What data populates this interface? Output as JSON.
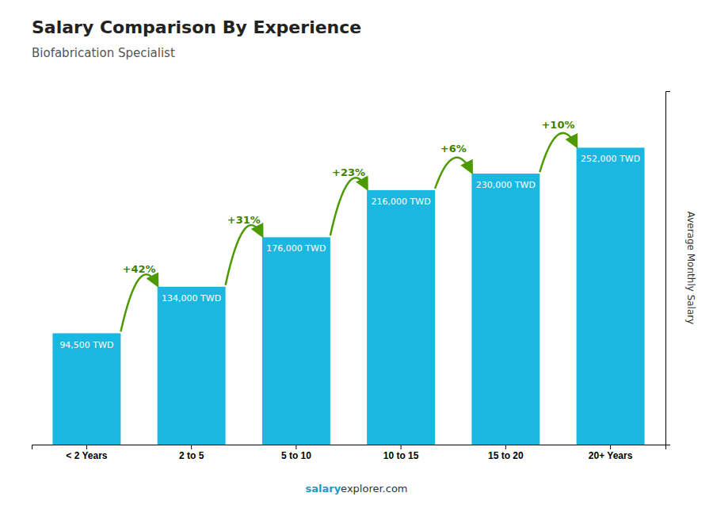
{
  "chart_data": {
    "type": "bar",
    "title": "Salary Comparison By Experience",
    "subtitle": "Biofabrication Specialist",
    "ylabel": "Average Monthly Salary",
    "categories": [
      "< 2 Years",
      "2 to 5",
      "5 to 10",
      "10 to 15",
      "15 to 20",
      "20+ Years"
    ],
    "values": [
      94500,
      134000,
      176000,
      216000,
      230000,
      252000
    ],
    "value_labels": [
      "94,500 TWD",
      "134,000 TWD",
      "176,000 TWD",
      "216,000 TWD",
      "230,000 TWD",
      "252,000 TWD"
    ],
    "data_labels": true,
    "annotations": [
      "+42%",
      "+31%",
      "+23%",
      "+6%",
      "+10%"
    ],
    "footer": [
      "salary",
      "explorer.com"
    ],
    "color": "#1ab8e0",
    "ylim": [
      0,
      300000
    ],
    "tick_labels": "x",
    "grid": false
  }
}
